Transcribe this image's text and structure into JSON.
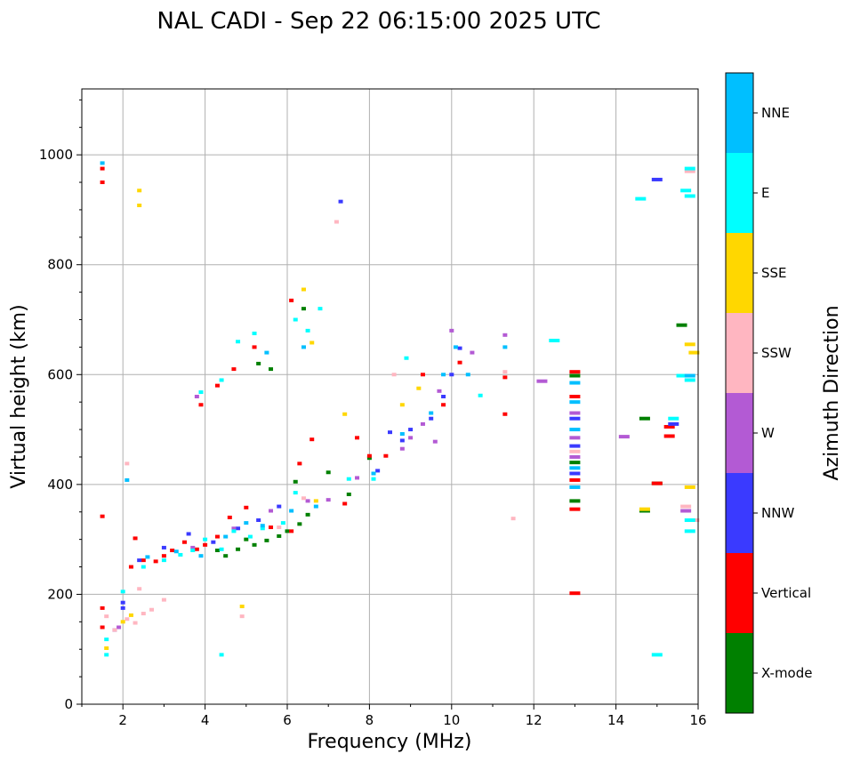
{
  "chart_data": {
    "type": "scatter",
    "title": "NAL CADI - Sep 22 06:15:00 2025 UTC",
    "xlabel": "Frequency (MHz)",
    "ylabel": "Virtual height (km)",
    "xlim": [
      1.0,
      16.0
    ],
    "ylim": [
      0,
      1120
    ],
    "xticks": [
      2,
      4,
      6,
      8,
      10,
      12,
      14,
      16
    ],
    "yticks": [
      0,
      200,
      400,
      600,
      800,
      1000
    ],
    "grid": true,
    "colorbar": {
      "label": "Azimuth Direction",
      "categories": [
        {
          "name": "X-mode",
          "color": "#008000"
        },
        {
          "name": "Vertical",
          "color": "#ff0000"
        },
        {
          "name": "NNW",
          "color": "#3a3aff"
        },
        {
          "name": "W",
          "color": "#b35ad4"
        },
        {
          "name": "SSW",
          "color": "#ffb6c1"
        },
        {
          "name": "SSE",
          "color": "#ffd700"
        },
        {
          "name": "E",
          "color": "#00ffff"
        },
        {
          "name": "NNE",
          "color": "#00bfff"
        }
      ]
    },
    "series": [
      {
        "name": "X-mode",
        "points": [
          [
            4.5,
            270
          ],
          [
            4.8,
            282
          ],
          [
            5.2,
            290
          ],
          [
            5.5,
            298
          ],
          [
            5.8,
            306
          ],
          [
            6.0,
            315
          ],
          [
            6.3,
            328
          ],
          [
            6.5,
            345
          ],
          [
            6.2,
            405
          ],
          [
            5.6,
            610
          ],
          [
            5.3,
            620
          ],
          [
            13.0,
            370
          ],
          [
            13.0,
            598
          ],
          [
            13.0,
            440
          ],
          [
            14.7,
            520
          ],
          [
            15.6,
            690
          ],
          [
            15.0,
            402
          ],
          [
            14.7,
            352
          ],
          [
            7.0,
            422
          ],
          [
            7.5,
            382
          ],
          [
            8.0,
            448
          ],
          [
            4.3,
            280
          ],
          [
            5.0,
            300
          ],
          [
            6.4,
            720
          ]
        ]
      },
      {
        "name": "Vertical",
        "points": [
          [
            1.5,
            140
          ],
          [
            1.5,
            175
          ],
          [
            1.5,
            342
          ],
          [
            1.5,
            950
          ],
          [
            1.5,
            975
          ],
          [
            2.2,
            250
          ],
          [
            2.5,
            262
          ],
          [
            2.8,
            260
          ],
          [
            3.0,
            270
          ],
          [
            3.2,
            280
          ],
          [
            3.5,
            295
          ],
          [
            3.8,
            282
          ],
          [
            4.0,
            290
          ],
          [
            4.3,
            305
          ],
          [
            4.6,
            340
          ],
          [
            5.0,
            358
          ],
          [
            5.6,
            322
          ],
          [
            6.1,
            315
          ],
          [
            6.3,
            438
          ],
          [
            6.6,
            482
          ],
          [
            3.9,
            545
          ],
          [
            4.3,
            580
          ],
          [
            4.7,
            610
          ],
          [
            5.2,
            650
          ],
          [
            6.1,
            735
          ],
          [
            8.0,
            452
          ],
          [
            8.4,
            452
          ],
          [
            9.3,
            600
          ],
          [
            9.8,
            545
          ],
          [
            10.2,
            622
          ],
          [
            11.3,
            528
          ],
          [
            11.3,
            595
          ],
          [
            13.0,
            355
          ],
          [
            13.0,
            202
          ],
          [
            13.0,
            408
          ],
          [
            13.0,
            560
          ],
          [
            13.0,
            605
          ],
          [
            15.3,
            488
          ],
          [
            15.3,
            505
          ],
          [
            15.0,
            402
          ],
          [
            7.4,
            365
          ],
          [
            7.7,
            485
          ],
          [
            2.3,
            302
          ]
        ]
      },
      {
        "name": "NNW",
        "points": [
          [
            1.8,
            135
          ],
          [
            2.0,
            175
          ],
          [
            2.0,
            185
          ],
          [
            2.4,
            262
          ],
          [
            3.0,
            285
          ],
          [
            3.6,
            310
          ],
          [
            4.2,
            295
          ],
          [
            4.8,
            320
          ],
          [
            5.3,
            335
          ],
          [
            5.8,
            360
          ],
          [
            8.5,
            495
          ],
          [
            8.8,
            480
          ],
          [
            9.0,
            500
          ],
          [
            9.5,
            520
          ],
          [
            9.8,
            560
          ],
          [
            10.0,
            600
          ],
          [
            10.2,
            648
          ],
          [
            13.0,
            420
          ],
          [
            13.0,
            470
          ],
          [
            13.0,
            520
          ],
          [
            15.0,
            955
          ],
          [
            15.4,
            510
          ],
          [
            8.2,
            425
          ],
          [
            7.3,
            915
          ]
        ]
      },
      {
        "name": "W",
        "points": [
          [
            1.9,
            140
          ],
          [
            3.7,
            285
          ],
          [
            4.7,
            320
          ],
          [
            5.6,
            352
          ],
          [
            6.5,
            370
          ],
          [
            7.0,
            372
          ],
          [
            7.7,
            412
          ],
          [
            8.8,
            465
          ],
          [
            9.0,
            485
          ],
          [
            9.3,
            510
          ],
          [
            9.6,
            478
          ],
          [
            9.7,
            570
          ],
          [
            10.0,
            680
          ],
          [
            10.5,
            640
          ],
          [
            11.3,
            672
          ],
          [
            12.2,
            588
          ],
          [
            13.0,
            450
          ],
          [
            13.0,
            485
          ],
          [
            13.0,
            530
          ],
          [
            14.2,
            487
          ],
          [
            15.7,
            352
          ],
          [
            3.8,
            560
          ]
        ]
      },
      {
        "name": "SSW",
        "points": [
          [
            1.6,
            160
          ],
          [
            1.8,
            135
          ],
          [
            2.1,
            155
          ],
          [
            2.3,
            148
          ],
          [
            2.5,
            165
          ],
          [
            2.7,
            172
          ],
          [
            2.4,
            210
          ],
          [
            2.1,
            438
          ],
          [
            4.9,
            160
          ],
          [
            5.8,
            322
          ],
          [
            6.4,
            375
          ],
          [
            7.2,
            878
          ],
          [
            11.3,
            605
          ],
          [
            11.5,
            338
          ],
          [
            15.8,
            970
          ],
          [
            15.7,
            360
          ],
          [
            15.9,
            335
          ],
          [
            3.0,
            190
          ],
          [
            8.6,
            600
          ],
          [
            13.0,
            460
          ]
        ]
      },
      {
        "name": "SSE",
        "points": [
          [
            1.6,
            102
          ],
          [
            2.0,
            150
          ],
          [
            2.2,
            162
          ],
          [
            2.4,
            935
          ],
          [
            2.4,
            908
          ],
          [
            4.9,
            178
          ],
          [
            6.4,
            755
          ],
          [
            6.6,
            658
          ],
          [
            8.8,
            545
          ],
          [
            9.2,
            575
          ],
          [
            14.7,
            355
          ],
          [
            15.8,
            655
          ],
          [
            15.8,
            395
          ],
          [
            15.9,
            640
          ],
          [
            7.4,
            528
          ],
          [
            6.7,
            370
          ]
        ]
      },
      {
        "name": "E",
        "points": [
          [
            1.6,
            90
          ],
          [
            1.6,
            118
          ],
          [
            2.0,
            205
          ],
          [
            2.5,
            250
          ],
          [
            3.0,
            262
          ],
          [
            3.4,
            272
          ],
          [
            3.7,
            280
          ],
          [
            4.0,
            300
          ],
          [
            4.4,
            282
          ],
          [
            4.7,
            315
          ],
          [
            5.1,
            305
          ],
          [
            5.4,
            320
          ],
          [
            5.9,
            330
          ],
          [
            6.2,
            385
          ],
          [
            6.5,
            680
          ],
          [
            6.8,
            720
          ],
          [
            3.9,
            568
          ],
          [
            4.4,
            590
          ],
          [
            4.8,
            660
          ],
          [
            5.2,
            675
          ],
          [
            7.5,
            410
          ],
          [
            8.1,
            410
          ],
          [
            8.9,
            630
          ],
          [
            10.7,
            562
          ],
          [
            12.5,
            662
          ],
          [
            14.6,
            920
          ],
          [
            15.0,
            90
          ],
          [
            15.8,
            975
          ],
          [
            15.7,
            935
          ],
          [
            15.8,
            925
          ],
          [
            15.6,
            598
          ],
          [
            15.8,
            590
          ],
          [
            15.4,
            520
          ],
          [
            15.8,
            335
          ],
          [
            15.8,
            315
          ],
          [
            4.4,
            90
          ],
          [
            6.2,
            700
          ]
        ]
      },
      {
        "name": "NNE",
        "points": [
          [
            1.5,
            985
          ],
          [
            2.1,
            408
          ],
          [
            2.6,
            268
          ],
          [
            3.3,
            278
          ],
          [
            3.9,
            270
          ],
          [
            4.5,
            305
          ],
          [
            5.0,
            330
          ],
          [
            5.4,
            325
          ],
          [
            6.1,
            352
          ],
          [
            6.7,
            360
          ],
          [
            6.4,
            650
          ],
          [
            8.1,
            420
          ],
          [
            8.8,
            492
          ],
          [
            9.5,
            530
          ],
          [
            9.8,
            600
          ],
          [
            10.1,
            650
          ],
          [
            10.4,
            600
          ],
          [
            11.3,
            650
          ],
          [
            13.0,
            430
          ],
          [
            13.0,
            500
          ],
          [
            13.0,
            550
          ],
          [
            13.0,
            585
          ],
          [
            13.0,
            395
          ],
          [
            15.8,
            598
          ],
          [
            5.5,
            640
          ]
        ]
      }
    ]
  }
}
